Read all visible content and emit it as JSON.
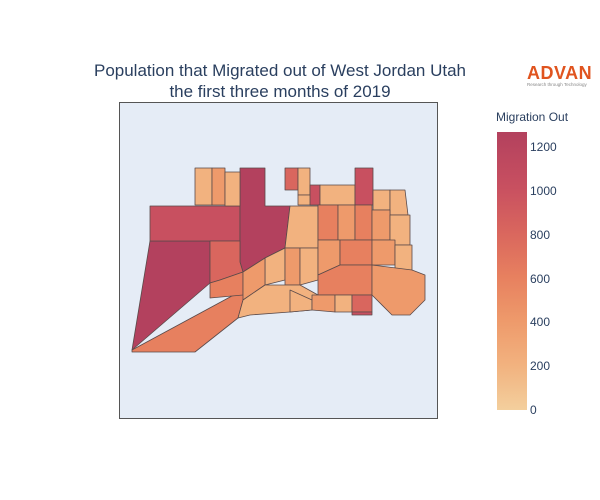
{
  "title": {
    "line1": "Population that Migrated out of West Jordan Utah",
    "line2": "the first three months of 2019"
  },
  "logo": {
    "word": "ADVAN",
    "tagline": "Research through Technology",
    "color": "#e0541f"
  },
  "map": {
    "background": "#e5ecf6",
    "border_color": "#555555"
  },
  "colorbar": {
    "title": "Migration Out",
    "min": 0,
    "max": 1270,
    "ticks": [
      "0",
      "200",
      "400",
      "600",
      "800",
      "1000",
      "1200"
    ],
    "colorscale": [
      "#f3cf9d",
      "#f2b27f",
      "#ee9a6b",
      "#e7805f",
      "#d9665e",
      "#c85060",
      "#b3415e"
    ]
  }
}
